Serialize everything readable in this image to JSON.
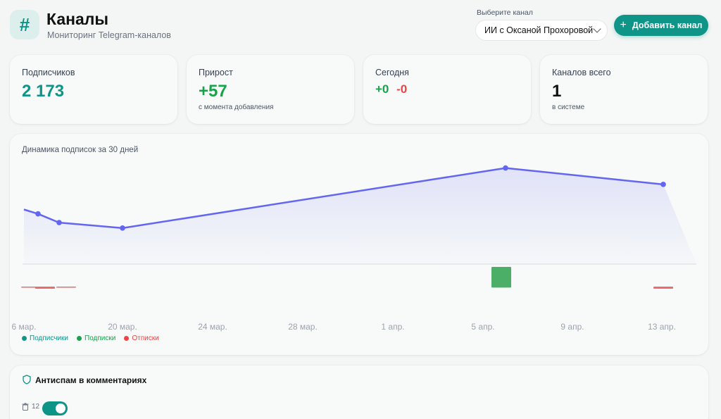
{
  "header": {
    "icon": "hash-icon",
    "title": "Каналы",
    "subtitle": "Мониторинг Telegram-каналов",
    "select_label": "Выберите канал",
    "select_value": "ИИ с Оксаной Прохоровой",
    "add_button": "Добавить канал"
  },
  "stats": [
    {
      "label": "Подписчиков",
      "value": "2 173",
      "note": ""
    },
    {
      "label": "Прирост",
      "value": "+57",
      "note": "с момента добавления"
    },
    {
      "label": "Сегодня",
      "value_plus": "+0",
      "value_minus": "-0",
      "note": ""
    },
    {
      "label": "Каналов всего",
      "value": "1",
      "note": "в системе"
    }
  ],
  "chart": {
    "title": "Динамика подписок за 30 дней",
    "legend": [
      {
        "name": "Подписчики",
        "color": "#0f9488"
      },
      {
        "name": "Подписки",
        "color": "#16a34a"
      },
      {
        "name": "Отписки",
        "color": "#ef4444"
      }
    ]
  },
  "chart_data": {
    "type": "line",
    "title": "Динамика подписок за 30 дней",
    "x_ticks": [
      "6 мар.",
      "20 мар.",
      "24 мар.",
      "28 мар.",
      "1 апр.",
      "5 апр.",
      "9 апр.",
      "13 апр."
    ],
    "series": [
      {
        "name": "Подписчики",
        "type": "line",
        "color": "#6366f1",
        "x": [
          "6 мар.",
          "8 мар.",
          "11 мар.",
          "20 мар.",
          "6 апр.",
          "13 апр."
        ],
        "values": [
          2150,
          2146,
          2138,
          2133,
          2188,
          2173
        ]
      },
      {
        "name": "Подписки",
        "type": "bar",
        "color": "#4caf68",
        "x": [
          "6 апр."
        ],
        "values": [
          21
        ]
      },
      {
        "name": "Отписки",
        "type": "bar",
        "color": "#ef6b6b",
        "x": [
          "7 мар.",
          "9 мар.",
          "12 мар.",
          "13 апр."
        ],
        "values": [
          -1,
          -2,
          -1,
          -2
        ]
      }
    ],
    "grid": false,
    "legend_position": "bottom-left"
  },
  "antispam": {
    "title": "Антиспам в комментариях",
    "trash_count": "12",
    "enabled": true
  }
}
